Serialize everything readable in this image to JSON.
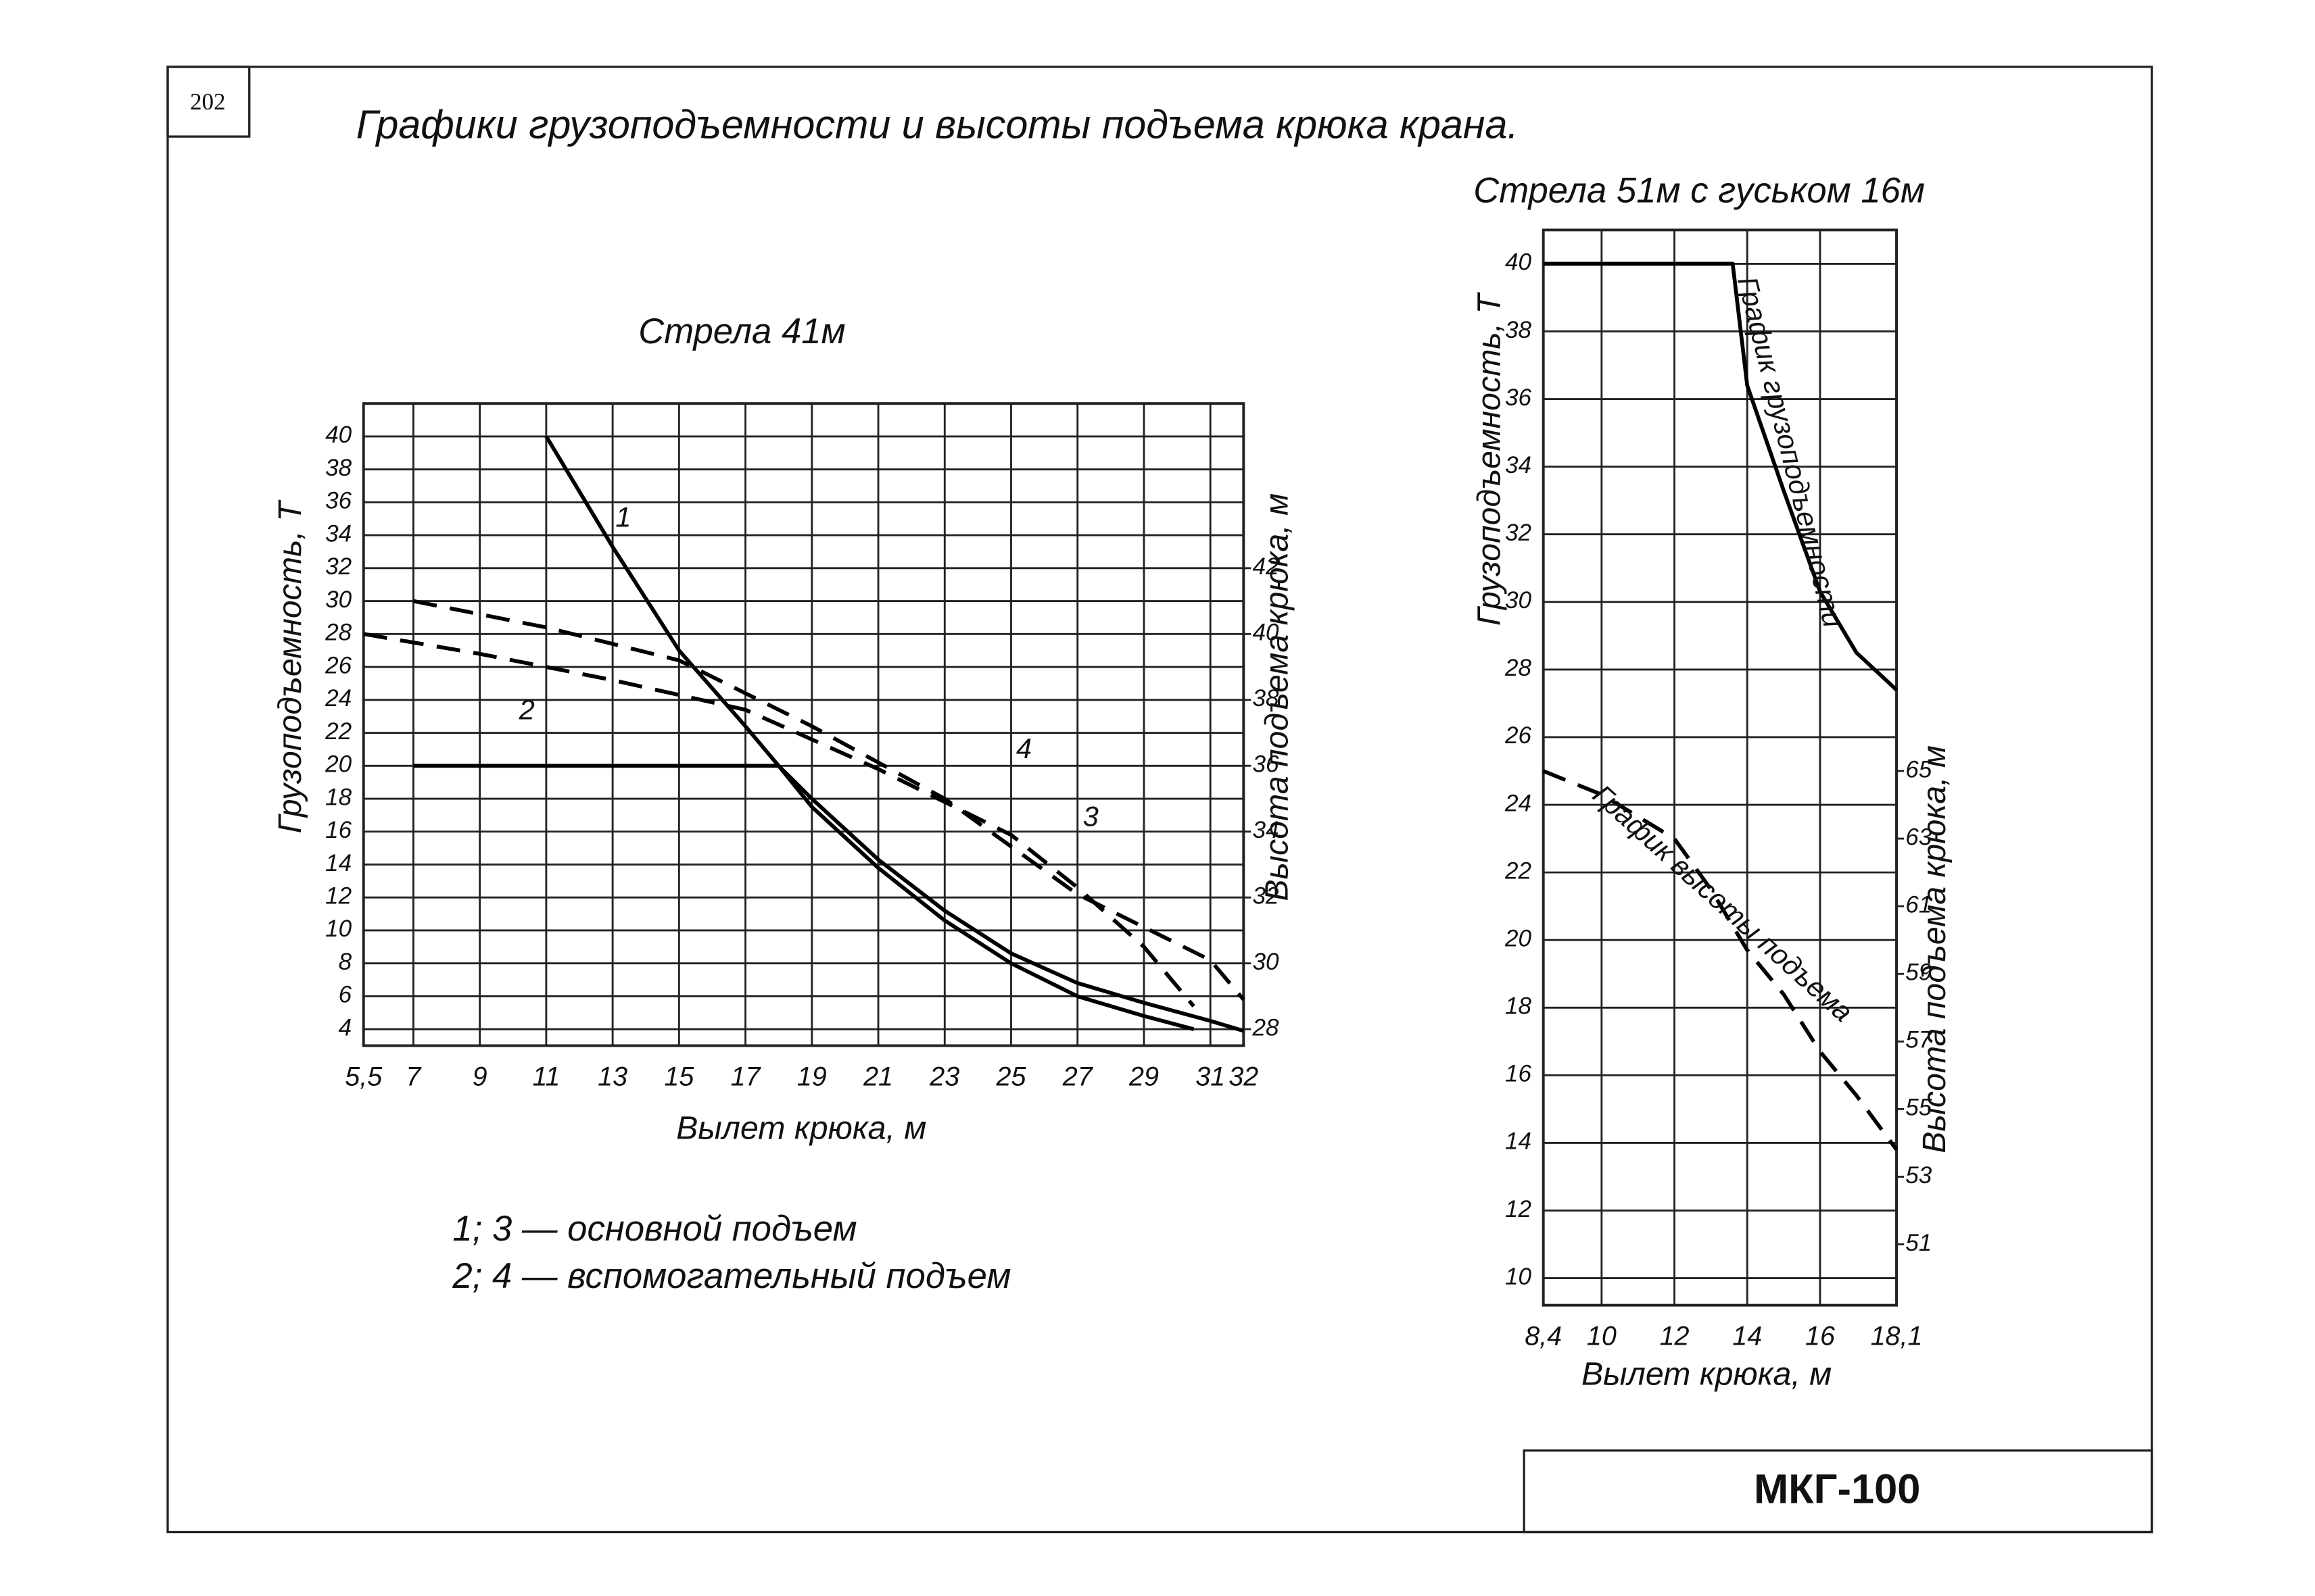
{
  "page_number": "202",
  "title": "Графики грузоподъемности и высоты подъема крюка крана.",
  "notes": [
    "1; 3 — основной подъем",
    "2; 4 — вспомогательный подъем"
  ],
  "stamp": "МКГ-100",
  "chart_data": [
    {
      "type": "line",
      "title": "Стрела 41м",
      "x_label": "Вылет крюка, м",
      "y_label": "Грузоподъемность, Т",
      "y2_label": "Высота подъема крюка, м",
      "xlim": [
        5.5,
        32
      ],
      "xticks": [
        {
          "value": 5.5,
          "label": "5,5"
        },
        7,
        9,
        11,
        13,
        15,
        17,
        19,
        21,
        23,
        25,
        27,
        29,
        31,
        32
      ],
      "ylim": [
        3,
        42
      ],
      "yticks": [
        4,
        6,
        8,
        10,
        12,
        14,
        16,
        18,
        20,
        22,
        24,
        26,
        28,
        30,
        32,
        34,
        36,
        38,
        40
      ],
      "y2lim": [
        27.5,
        47
      ],
      "y2ticks": [
        28,
        30,
        32,
        34,
        36,
        38,
        40,
        42
      ],
      "grid": true,
      "series": [
        {
          "name": "1",
          "color": "#000",
          "style": "solid",
          "axis": "y",
          "x": [
            11,
            13,
            15,
            17,
            18,
            19,
            21,
            23,
            25,
            27,
            29,
            31,
            32
          ],
          "values": [
            40,
            33.3,
            27,
            22.4,
            20,
            18,
            14.3,
            11.2,
            8.6,
            6.8,
            5.6,
            4.5,
            3.9
          ]
        },
        {
          "name": "2",
          "color": "#000",
          "style": "solid",
          "axis": "y",
          "x": [
            7,
            11,
            15,
            18,
            19,
            21,
            23,
            25,
            27,
            29,
            30.5
          ],
          "values": [
            20,
            20,
            20,
            20,
            17.5,
            13.8,
            10.6,
            8,
            6,
            4.8,
            4
          ]
        },
        {
          "name": "3",
          "color": "#000",
          "style": "dashed",
          "axis": "y2",
          "x": [
            5.5,
            9,
            13,
            17,
            21,
            25,
            27,
            29,
            30.5
          ],
          "values": [
            40,
            39.4,
            38.6,
            37.7,
            35.9,
            33.9,
            32.3,
            30.5,
            28.7
          ]
        },
        {
          "name": "4",
          "color": "#000",
          "style": "dashed",
          "axis": "y2",
          "x": [
            7,
            11,
            15,
            19,
            23,
            27,
            31,
            32
          ],
          "values": [
            41,
            40.2,
            39.2,
            37.2,
            35,
            32.1,
            30.1,
            28.9
          ]
        }
      ]
    },
    {
      "type": "line",
      "title": "Стрела 51м с гуськом 16м",
      "x_label": "Вылет крюка, м",
      "y_label": "Грузоподъемность, Т",
      "y2_label": "Высота подъема крюка, м",
      "xlim": [
        8.4,
        18.1
      ],
      "xticks": [
        {
          "value": 8.4,
          "label": "8,4"
        },
        10,
        12,
        14,
        16,
        {
          "value": 18.1,
          "label": "18,1"
        }
      ],
      "ylim": [
        9.2,
        41
      ],
      "yticks": [
        10,
        12,
        14,
        16,
        18,
        20,
        22,
        24,
        26,
        28,
        30,
        32,
        34,
        36,
        38,
        40
      ],
      "y2lim": [
        49.2,
        81
      ],
      "y2ticks": [
        51,
        53,
        55,
        57,
        59,
        61,
        63,
        65
      ],
      "grid": true,
      "series": [
        {
          "name": "График грузоподъемности",
          "color": "#000",
          "style": "solid",
          "axis": "y",
          "x": [
            8.4,
            13.6,
            14,
            15,
            16,
            17,
            18.1
          ],
          "values": [
            40,
            40,
            36.4,
            33.3,
            30.3,
            28.5,
            27.4
          ]
        },
        {
          "name": "График высоты подъема",
          "color": "#000",
          "style": "dashed",
          "axis": "y2",
          "x": [
            8.4,
            10,
            12,
            13,
            14,
            15,
            16,
            17,
            18.1
          ],
          "values": [
            65,
            64.3,
            63,
            61.5,
            59.7,
            58.4,
            56.7,
            55.4,
            53.8
          ]
        }
      ]
    }
  ]
}
